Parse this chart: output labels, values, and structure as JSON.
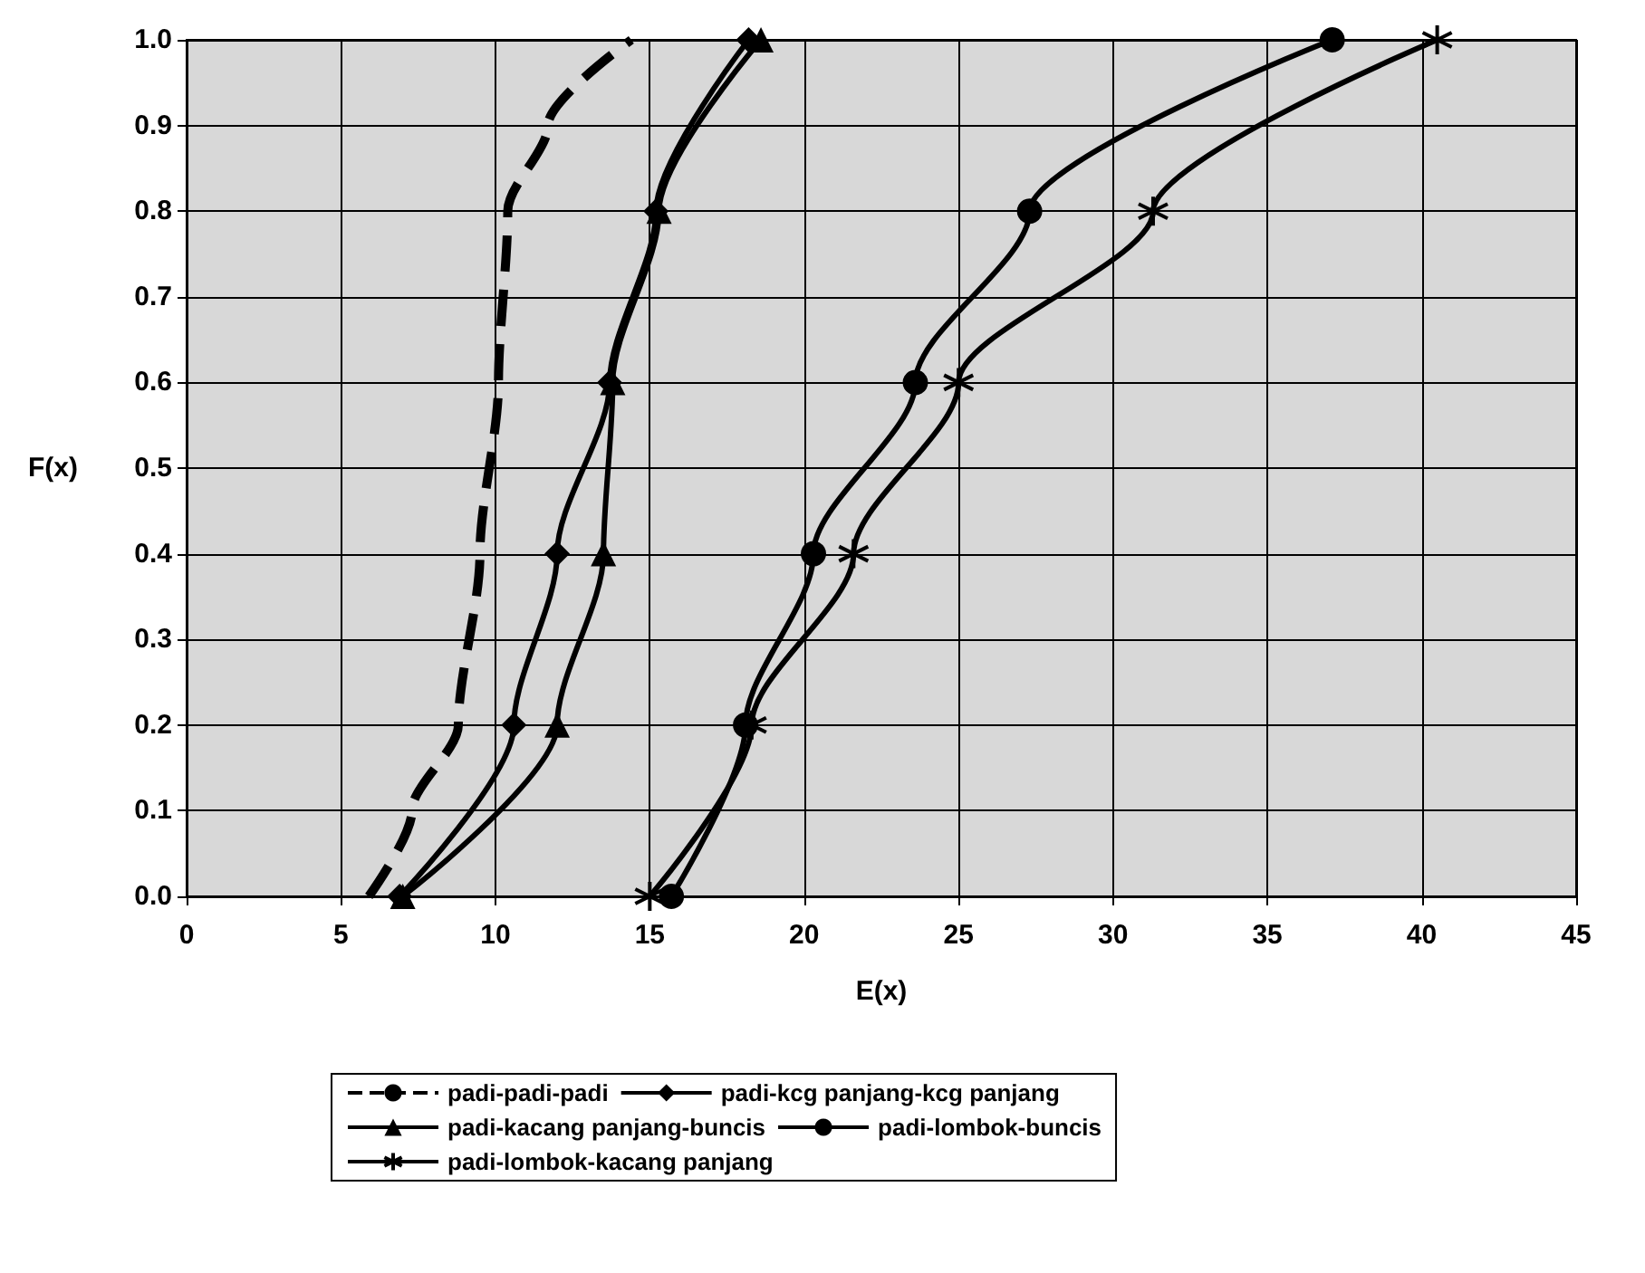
{
  "chart_data": {
    "type": "line",
    "xlabel": "E(x)",
    "ylabel": "F(x)",
    "xlim": [
      0,
      45
    ],
    "xticks": [
      0,
      5,
      10,
      15,
      20,
      25,
      30,
      35,
      40,
      45
    ],
    "ylim": [
      0,
      1
    ],
    "yticks": [
      {
        "value": 0,
        "label": "0.0"
      },
      0.1,
      0.2,
      0.3,
      0.4,
      0.5,
      0.6,
      0.7,
      0.8,
      0.9,
      {
        "value": 1,
        "label": "1.0"
      }
    ],
    "grid": true,
    "legend": "bottom",
    "series": [
      {
        "name": "padi-padi-padi",
        "color": "#000000",
        "line_style": "dashed",
        "marker": "none",
        "x": [
          5.9,
          7.3,
          8.8,
          9.5,
          10.1,
          10.4,
          11.7,
          14.4
        ],
        "values": [
          0,
          0.1,
          0.2,
          0.4,
          0.6,
          0.8,
          0.9,
          1.0
        ]
      },
      {
        "name": "padi-kcg panjang-kcg panjang",
        "color": "#000000",
        "marker": "diamond",
        "x": [
          6.9,
          10.6,
          12,
          13.7,
          15.2,
          18.2
        ],
        "values": [
          0,
          0.2,
          0.4,
          0.6,
          0.8,
          1.0
        ]
      },
      {
        "name": "padi-kacang panjang-buncis",
        "color": "#000000",
        "marker": "triangle",
        "x": [
          7,
          12,
          13.5,
          13.8,
          15.3,
          18.6
        ],
        "values": [
          0,
          0.2,
          0.4,
          0.6,
          0.8,
          1.0
        ]
      },
      {
        "name": "padi-lombok-buncis",
        "color": "#000000",
        "marker": "circle",
        "x": [
          15.7,
          18.1,
          20.3,
          23.6,
          27.3,
          37.1
        ],
        "values": [
          0,
          0.2,
          0.4,
          0.6,
          0.8,
          1.0
        ]
      },
      {
        "name": "padi-lombok-kacang panjang",
        "color": "#000000",
        "marker": "cross",
        "x": [
          15,
          18.3,
          21.6,
          25,
          31.3,
          40.5
        ],
        "values": [
          0,
          0.2,
          0.4,
          0.6,
          0.8,
          1.0
        ]
      }
    ]
  }
}
